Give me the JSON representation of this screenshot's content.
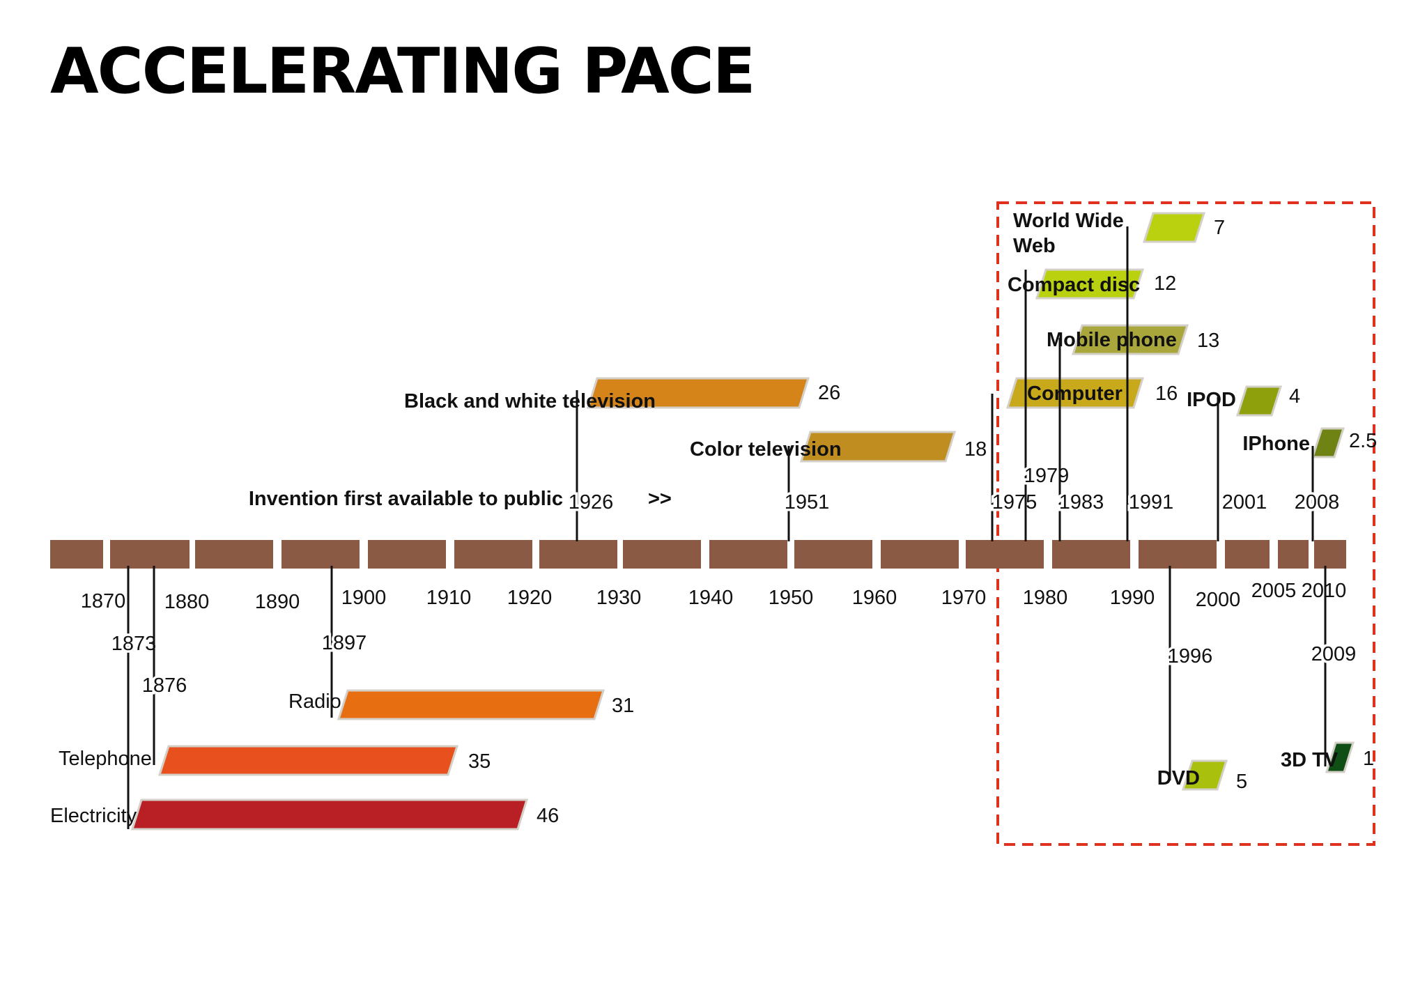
{
  "title": "ACCELERATING PACE",
  "chart_data": {
    "type": "timeline",
    "title": "ACCELERATING PACE",
    "subtitle": "Invention first available to public",
    "arrow": ">>",
    "axis_years": [
      "1870",
      "1880",
      "1890",
      "1900",
      "1910",
      "1920",
      "1930",
      "1940",
      "1950",
      "1960",
      "1970",
      "1980",
      "1990",
      "2000",
      "2005",
      "2010"
    ],
    "inventions": [
      {
        "name": "Electricity",
        "year": "1873",
        "years_to_adoption": "46",
        "color": "#b82025"
      },
      {
        "name": "Telephone",
        "year": "1876",
        "years_to_adoption": "35",
        "color": "#e8501e"
      },
      {
        "name": "Radio",
        "year": "1897",
        "years_to_adoption": "31",
        "color": "#e86e12"
      },
      {
        "name": "Black and white television",
        "year": "1926",
        "years_to_adoption": "26",
        "color": "#d5841a"
      },
      {
        "name": "Color television",
        "year": "1951",
        "years_to_adoption": "18",
        "color": "#c08e20"
      },
      {
        "name": "Computer",
        "year": "1975",
        "years_to_adoption": "16",
        "color": "#c8a91c"
      },
      {
        "name": "Compact disc",
        "year": "1979",
        "years_to_adoption": "12",
        "color": "#b9d10e"
      },
      {
        "name": "Mobile phone",
        "year": "1983",
        "years_to_adoption": "13",
        "color": "#a9a73c"
      },
      {
        "name": "World Wide Web",
        "year": "1991",
        "years_to_adoption": "7",
        "color": "#b9d10e"
      },
      {
        "name": "DVD",
        "year": "1996",
        "years_to_adoption": "5",
        "color": "#a9c00c"
      },
      {
        "name": "IPOD",
        "year": "2001",
        "years_to_adoption": "4",
        "color": "#8ea10d"
      },
      {
        "name": "IPhone",
        "year": "2008",
        "years_to_adoption": "2.5",
        "color": "#6e8313"
      },
      {
        "name": "3D TV",
        "year": "2009",
        "years_to_adoption": "1",
        "color": "#0f4e14"
      }
    ],
    "highlight": "dashed box around 1975-2010 inventions",
    "axis_color": "#8b5a45",
    "highlight_color": "#e0301e"
  }
}
